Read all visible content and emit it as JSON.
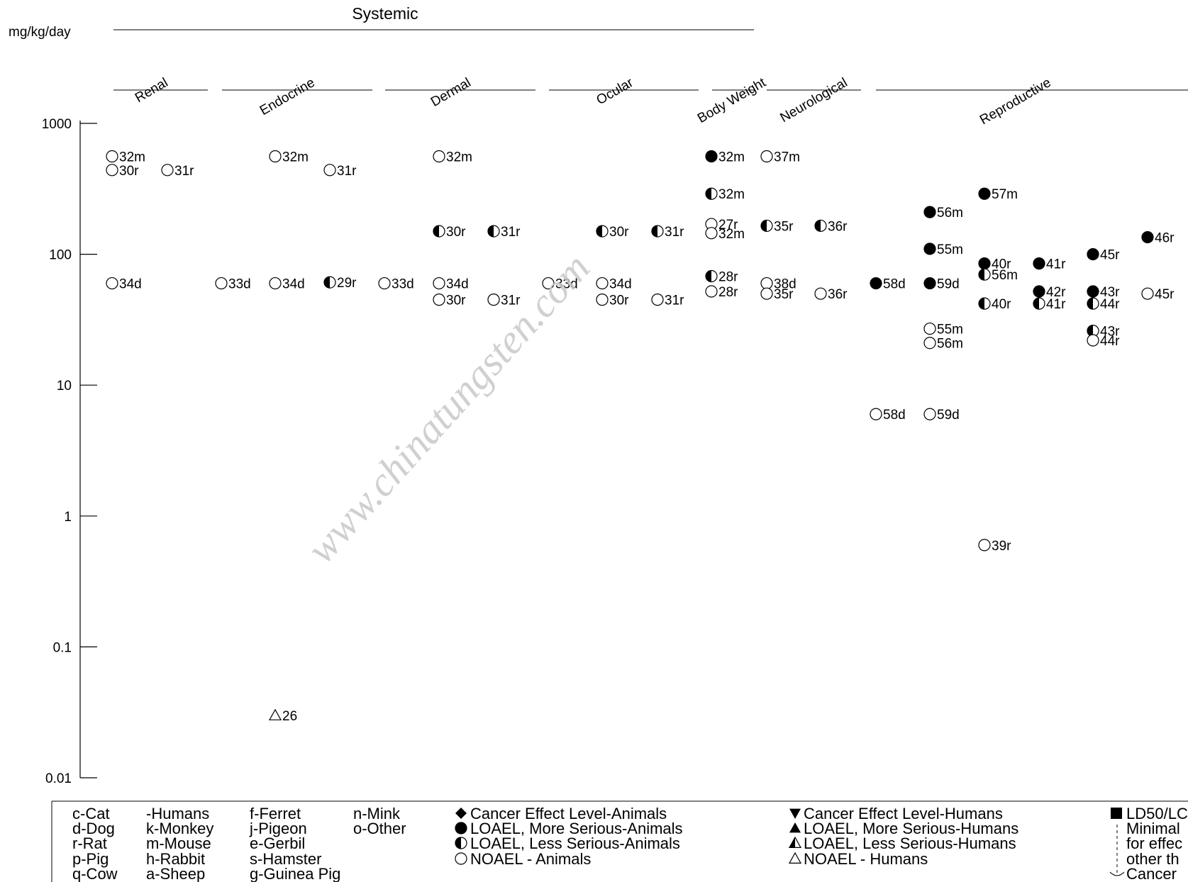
{
  "chart_data": {
    "type": "scatter",
    "title": "",
    "unit_label": "mg/kg/day",
    "group_label": "Systemic",
    "y_scale": "log",
    "ylim": [
      0.01,
      1000
    ],
    "y_ticks": [
      {
        "value": 1000,
        "label": "1000"
      },
      {
        "value": 100,
        "label": "100"
      },
      {
        "value": 10,
        "label": "10"
      },
      {
        "value": 1,
        "label": "1"
      },
      {
        "value": 0.1,
        "label": "0.1"
      },
      {
        "value": 0.01,
        "label": "0.01"
      }
    ],
    "categories": [
      "Renal",
      "Endocrine",
      "Dermal",
      "Ocular",
      "Body Weight",
      "Neurological",
      "Reproductive"
    ],
    "points": [
      {
        "category": "Renal",
        "slot": 0,
        "y": 560,
        "label": "32m",
        "marker": "noael-animal"
      },
      {
        "category": "Renal",
        "slot": 0,
        "y": 440,
        "label": "30r",
        "marker": "noael-animal"
      },
      {
        "category": "Renal",
        "slot": 1,
        "y": 440,
        "label": "31r",
        "marker": "noael-animal"
      },
      {
        "category": "Renal",
        "slot": 0,
        "y": 60,
        "label": "34d",
        "marker": "noael-animal"
      },
      {
        "category": "Endocrine",
        "slot": 0,
        "y": 60,
        "label": "33d",
        "marker": "noael-animal"
      },
      {
        "category": "Endocrine",
        "slot": 1,
        "y": 560,
        "label": "32m",
        "marker": "noael-animal"
      },
      {
        "category": "Endocrine",
        "slot": 1,
        "y": 60,
        "label": "34d",
        "marker": "noael-animal"
      },
      {
        "category": "Endocrine",
        "slot": 1,
        "y": 0.03,
        "label": "26",
        "marker": "noael-human"
      },
      {
        "category": "Endocrine",
        "slot": 2,
        "y": 440,
        "label": "31r",
        "marker": "noael-animal"
      },
      {
        "category": "Endocrine",
        "slot": 2,
        "y": 61,
        "label": "29r",
        "marker": "loael-less-animal"
      },
      {
        "category": "Dermal",
        "slot": 0,
        "y": 60,
        "label": "33d",
        "marker": "noael-animal"
      },
      {
        "category": "Dermal",
        "slot": 1,
        "y": 560,
        "label": "32m",
        "marker": "noael-animal"
      },
      {
        "category": "Dermal",
        "slot": 1,
        "y": 150,
        "label": "30r",
        "marker": "loael-less-animal"
      },
      {
        "category": "Dermal",
        "slot": 1,
        "y": 60,
        "label": "34d",
        "marker": "noael-animal"
      },
      {
        "category": "Dermal",
        "slot": 1,
        "y": 45,
        "label": "30r",
        "marker": "noael-animal"
      },
      {
        "category": "Dermal",
        "slot": 2,
        "y": 150,
        "label": "31r",
        "marker": "loael-less-animal"
      },
      {
        "category": "Dermal",
        "slot": 2,
        "y": 45,
        "label": "31r",
        "marker": "noael-animal"
      },
      {
        "category": "Ocular",
        "slot": 0,
        "y": 60,
        "label": "33d",
        "marker": "noael-animal"
      },
      {
        "category": "Ocular",
        "slot": 1,
        "y": 150,
        "label": "30r",
        "marker": "loael-less-animal"
      },
      {
        "category": "Ocular",
        "slot": 1,
        "y": 60,
        "label": "34d",
        "marker": "noael-animal"
      },
      {
        "category": "Ocular",
        "slot": 1,
        "y": 45,
        "label": "30r",
        "marker": "noael-animal"
      },
      {
        "category": "Ocular",
        "slot": 2,
        "y": 150,
        "label": "31r",
        "marker": "loael-less-animal"
      },
      {
        "category": "Ocular",
        "slot": 2,
        "y": 45,
        "label": "31r",
        "marker": "noael-animal"
      },
      {
        "category": "Body Weight",
        "slot": 0,
        "y": 560,
        "label": "32m",
        "marker": "loael-more-animal"
      },
      {
        "category": "Body Weight",
        "slot": 0,
        "y": 290,
        "label": "32m",
        "marker": "loael-less-animal"
      },
      {
        "category": "Body Weight",
        "slot": 0,
        "y": 170,
        "label": "27r",
        "marker": "noael-animal"
      },
      {
        "category": "Body Weight",
        "slot": 0,
        "y": 145,
        "label": "32m",
        "marker": "noael-animal"
      },
      {
        "category": "Body Weight",
        "slot": 0,
        "y": 68,
        "label": "28r",
        "marker": "loael-less-animal"
      },
      {
        "category": "Body Weight",
        "slot": 0,
        "y": 52,
        "label": "28r",
        "marker": "noael-animal"
      },
      {
        "category": "Neurological",
        "slot": 0,
        "y": 560,
        "label": "37m",
        "marker": "noael-animal"
      },
      {
        "category": "Neurological",
        "slot": 0,
        "y": 165,
        "label": "35r",
        "marker": "loael-less-animal"
      },
      {
        "category": "Neurological",
        "slot": 0,
        "y": 60,
        "label": "38d",
        "marker": "noael-animal"
      },
      {
        "category": "Neurological",
        "slot": 0,
        "y": 50,
        "label": "35r",
        "marker": "noael-animal"
      },
      {
        "category": "Neurological",
        "slot": 1,
        "y": 165,
        "label": "36r",
        "marker": "loael-less-animal"
      },
      {
        "category": "Neurological",
        "slot": 1,
        "y": 50,
        "label": "36r",
        "marker": "noael-animal"
      },
      {
        "category": "Reproductive",
        "slot": 0,
        "y": 60,
        "label": "58d",
        "marker": "loael-more-animal"
      },
      {
        "category": "Reproductive",
        "slot": 0,
        "y": 6,
        "label": "58d",
        "marker": "noael-animal"
      },
      {
        "category": "Reproductive",
        "slot": 1,
        "y": 210,
        "label": "56m",
        "marker": "loael-more-animal"
      },
      {
        "category": "Reproductive",
        "slot": 1,
        "y": 110,
        "label": "55m",
        "marker": "loael-more-animal"
      },
      {
        "category": "Reproductive",
        "slot": 1,
        "y": 60,
        "label": "59d",
        "marker": "loael-more-animal"
      },
      {
        "category": "Reproductive",
        "slot": 1,
        "y": 27,
        "label": "55m",
        "marker": "noael-animal"
      },
      {
        "category": "Reproductive",
        "slot": 1,
        "y": 21,
        "label": "56m",
        "marker": "noael-animal"
      },
      {
        "category": "Reproductive",
        "slot": 1,
        "y": 6,
        "label": "59d",
        "marker": "noael-animal"
      },
      {
        "category": "Reproductive",
        "slot": 2,
        "y": 290,
        "label": "57m",
        "marker": "loael-more-animal"
      },
      {
        "category": "Reproductive",
        "slot": 2,
        "y": 85,
        "label": "40r",
        "marker": "loael-more-animal"
      },
      {
        "category": "Reproductive",
        "slot": 2,
        "y": 70,
        "label": "56m",
        "marker": "loael-less-animal"
      },
      {
        "category": "Reproductive",
        "slot": 2,
        "y": 42,
        "label": "40r",
        "marker": "loael-less-animal"
      },
      {
        "category": "Reproductive",
        "slot": 2,
        "y": 0.6,
        "label": "39r",
        "marker": "noael-animal"
      },
      {
        "category": "Reproductive",
        "slot": 3,
        "y": 85,
        "label": "41r",
        "marker": "loael-more-animal"
      },
      {
        "category": "Reproductive",
        "slot": 3,
        "y": 52,
        "label": "42r",
        "marker": "loael-more-animal"
      },
      {
        "category": "Reproductive",
        "slot": 3,
        "y": 42,
        "label": "41r",
        "marker": "loael-less-animal"
      },
      {
        "category": "Reproductive",
        "slot": 4,
        "y": 100,
        "label": "45r",
        "marker": "loael-more-animal"
      },
      {
        "category": "Reproductive",
        "slot": 4,
        "y": 52,
        "label": "43r",
        "marker": "loael-more-animal"
      },
      {
        "category": "Reproductive",
        "slot": 4,
        "y": 42,
        "label": "44r",
        "marker": "loael-less-animal"
      },
      {
        "category": "Reproductive",
        "slot": 4,
        "y": 26,
        "label": "43r",
        "marker": "loael-less-animal"
      },
      {
        "category": "Reproductive",
        "slot": 4,
        "y": 22,
        "label": "44r",
        "marker": "noael-animal"
      },
      {
        "category": "Reproductive",
        "slot": 5,
        "y": 135,
        "label": "46r",
        "marker": "loael-more-animal"
      },
      {
        "category": "Reproductive",
        "slot": 5,
        "y": 50,
        "label": "45r",
        "marker": "noael-animal"
      }
    ]
  },
  "legend": {
    "species_columns": [
      [
        "c-Cat",
        "d-Dog",
        "r-Rat",
        "p-Pig",
        "q-Cow"
      ],
      [
        "-Humans",
        "k-Monkey",
        "m-Mouse",
        "h-Rabbit",
        "a-Sheep"
      ],
      [
        "f-Ferret",
        "j-Pigeon",
        "e-Gerbil",
        "s-Hamster",
        "g-Guinea Pig"
      ],
      [
        "n-Mink",
        "o-Other"
      ]
    ],
    "animal_markers": [
      {
        "marker": "cancer-animal",
        "label": "Cancer Effect Level-Animals"
      },
      {
        "marker": "loael-more-animal",
        "label": "LOAEL, More Serious-Animals"
      },
      {
        "marker": "loael-less-animal",
        "label": "LOAEL, Less Serious-Animals"
      },
      {
        "marker": "noael-animal",
        "label": "NOAEL - Animals"
      }
    ],
    "human_markers": [
      {
        "marker": "cancer-human",
        "label": "Cancer Effect Level-Humans"
      },
      {
        "marker": "loael-more-human",
        "label": "LOAEL, More Serious-Humans"
      },
      {
        "marker": "loael-less-human",
        "label": "LOAEL, Less Serious-Humans"
      },
      {
        "marker": "noael-human",
        "label": "NOAEL - Humans"
      }
    ],
    "other_markers": [
      {
        "marker": "ld50",
        "label": "LD50/LC"
      },
      {
        "marker": "none",
        "label": "Minimal"
      },
      {
        "marker": "none",
        "label": "for effec"
      },
      {
        "marker": "none",
        "label": "other th"
      },
      {
        "marker": "none",
        "label": "Cancer"
      }
    ]
  },
  "watermark": {
    "text": "www.chinatungsten.com",
    "color": "#c8c8c8"
  }
}
